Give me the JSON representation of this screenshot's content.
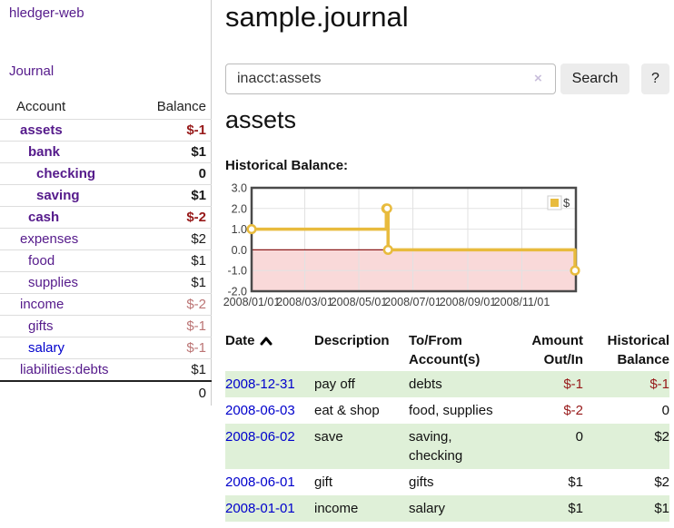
{
  "app": {
    "brand": "hledger-web"
  },
  "sidebar": {
    "nav_journal": "Journal",
    "accounts_table": {
      "headers": [
        "Account",
        "Balance"
      ],
      "rows": [
        {
          "name": "assets",
          "indent": 1,
          "bold": true,
          "balance": "$-1",
          "balance_style": "neg"
        },
        {
          "name": "bank",
          "indent": 2,
          "bold": true,
          "balance": "$1",
          "balance_style": "pos"
        },
        {
          "name": "checking",
          "indent": 3,
          "bold": true,
          "balance": "0",
          "balance_style": "pos"
        },
        {
          "name": "saving",
          "indent": 3,
          "bold": true,
          "balance": "$1",
          "balance_style": "pos"
        },
        {
          "name": "cash",
          "indent": 2,
          "bold": true,
          "balance": "$-2",
          "balance_style": "neg"
        },
        {
          "name": "expenses",
          "indent": 1,
          "bold": false,
          "balance": "$2",
          "balance_style": "pos"
        },
        {
          "name": "food",
          "indent": 2,
          "bold": false,
          "balance": "$1",
          "balance_style": "pos"
        },
        {
          "name": "supplies",
          "indent": 2,
          "bold": false,
          "balance": "$1",
          "balance_style": "pos"
        },
        {
          "name": "income",
          "indent": 1,
          "bold": false,
          "balance": "$-2",
          "balance_style": "neg-dim"
        },
        {
          "name": "gifts",
          "indent": 2,
          "bold": false,
          "balance": "$-1",
          "balance_style": "neg-dim"
        },
        {
          "name": "salary",
          "indent": 2,
          "bold": false,
          "link_color": "blue",
          "balance": "$-1",
          "balance_style": "neg-dim"
        },
        {
          "name": "liabilities:debts",
          "indent": 1,
          "bold": false,
          "balance": "$1",
          "balance_style": "pos"
        }
      ],
      "total": "0"
    }
  },
  "header": {
    "title": "sample.journal"
  },
  "search": {
    "value": "inacct:assets",
    "clear_icon": "×",
    "button": "Search",
    "help_button": "?"
  },
  "content": {
    "heading": "assets",
    "chart_label": "Historical Balance:"
  },
  "chart_data": {
    "type": "line",
    "title": "Historical Balance",
    "step": true,
    "legend": [
      {
        "label": "$",
        "color": "#e8bb3d"
      }
    ],
    "legend_position": "top-right",
    "x_domain": [
      "2008/01/01",
      "2009/01/01"
    ],
    "x_ticks": [
      "2008/01/01",
      "2008/03/01",
      "2008/05/01",
      "2008/07/01",
      "2008/09/01",
      "2008/11/01"
    ],
    "y_ticks": [
      "3.0",
      "2.0",
      "1.0",
      "0.0",
      "-1.0",
      "-2.0"
    ],
    "ylim": [
      -2,
      3
    ],
    "grid": true,
    "points": [
      {
        "date": "2008/01/01",
        "value": 1
      },
      {
        "date": "2008/06/01",
        "value": 2
      },
      {
        "date": "2008/06/02",
        "value": 2
      },
      {
        "date": "2008/06/03",
        "value": 0
      },
      {
        "date": "2008/12/31",
        "value": -1
      }
    ],
    "series_color": "#e8bb3d",
    "negative_region_color": "#f9d9d9",
    "zero_line_color": "#8b1a1a",
    "grid_color": "#e2e2e2",
    "border_color": "#4a4a4a"
  },
  "register_table": {
    "headers": {
      "date": "Date",
      "description": "Description",
      "account": "To/From Account(s)",
      "amount": "Amount Out/In",
      "balance": "Historical Balance"
    },
    "sort": {
      "column": "date",
      "direction": "ascending"
    },
    "rows": [
      {
        "date": "2008-12-31",
        "description": "pay off",
        "account": "debts",
        "amount": "$-1",
        "amount_neg": true,
        "balance": "$-1",
        "balance_neg": true,
        "shade": true
      },
      {
        "date": "2008-06-03",
        "description": "eat & shop",
        "account": "food, supplies",
        "amount": "$-2",
        "amount_neg": true,
        "balance": "0",
        "balance_neg": false,
        "shade": false
      },
      {
        "date": "2008-06-02",
        "description": "save",
        "account": "saving, checking",
        "amount": "0",
        "amount_neg": false,
        "balance": "$2",
        "balance_neg": false,
        "shade": true
      },
      {
        "date": "2008-06-01",
        "description": "gift",
        "account": "gifts",
        "amount": "$1",
        "amount_neg": false,
        "balance": "$2",
        "balance_neg": false,
        "shade": false
      },
      {
        "date": "2008-01-01",
        "description": "income",
        "account": "salary",
        "amount": "$1",
        "amount_neg": false,
        "balance": "$1",
        "balance_neg": false,
        "shade": true
      }
    ]
  },
  "colors": {
    "link_purple": "#551a8b",
    "link_blue": "#0000cc",
    "negative": "#971919",
    "negative_dim": "#bb7474",
    "row_stripe_green": "#dff0d8",
    "button_bg": "#ececec"
  }
}
